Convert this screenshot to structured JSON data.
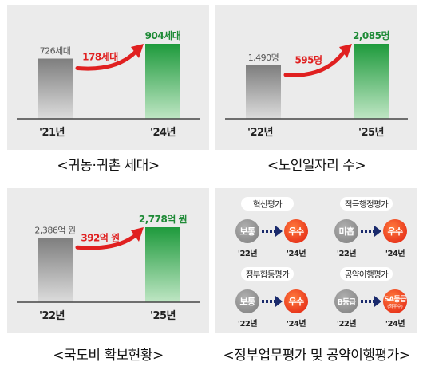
{
  "chart_data": [
    {
      "type": "bar",
      "title": "<귀농·귀촌 세대>",
      "categories": [
        "'21년",
        "'24년"
      ],
      "values": [
        726,
        904
      ],
      "value_labels": [
        "726세대",
        "904세대"
      ],
      "increase_label": "178세대",
      "colors": {
        "before": "#8a8a8a",
        "after": "#1e9a3c",
        "value_after": "#1e8a36",
        "increase": "#e02020"
      }
    },
    {
      "type": "bar",
      "title": "<노인일자리 수>",
      "categories": [
        "'22년",
        "'25년"
      ],
      "values": [
        1490,
        2085
      ],
      "value_labels": [
        "1,490명",
        "2,085명"
      ],
      "increase_label": "595명",
      "colors": {
        "before": "#8a8a8a",
        "after": "#1e9a3c",
        "value_after": "#1e8a36",
        "increase": "#e02020"
      }
    },
    {
      "type": "bar",
      "title": "<국도비 확보현황>",
      "categories": [
        "'22년",
        "'25년"
      ],
      "values": [
        2386,
        2778
      ],
      "value_labels": [
        "2,386억 원",
        "2,778억 원"
      ],
      "increase_label": "392억 원",
      "colors": {
        "before": "#8a8a8a",
        "after": "#1e9a3c",
        "value_after": "#1e8a36",
        "increase": "#e02020"
      }
    }
  ],
  "evaluation": {
    "title": "<정부업무평가 및 공약이행평가>",
    "items": [
      {
        "name": "혁신평가",
        "before": "보통",
        "after": "우수",
        "after_sub": "",
        "year_before": "'22년",
        "year_after": "'24년"
      },
      {
        "name": "적극행정평가",
        "before": "미흡",
        "after": "우수",
        "after_sub": "",
        "year_before": "'22년",
        "year_after": "'24년"
      },
      {
        "name": "정부합동평가",
        "before": "보통",
        "after": "우수",
        "after_sub": "",
        "year_before": "'22년",
        "year_after": "'24년"
      },
      {
        "name": "공약이행평가",
        "before": "B등급",
        "after": "SA등급",
        "after_sub": "(최우수)",
        "year_before": "'22년",
        "year_after": "'24년"
      }
    ],
    "colors": {
      "before": "#8a8a8a",
      "after": "#e8361c",
      "arrow": "#1a2a6c",
      "pill": "#ffffff"
    }
  }
}
